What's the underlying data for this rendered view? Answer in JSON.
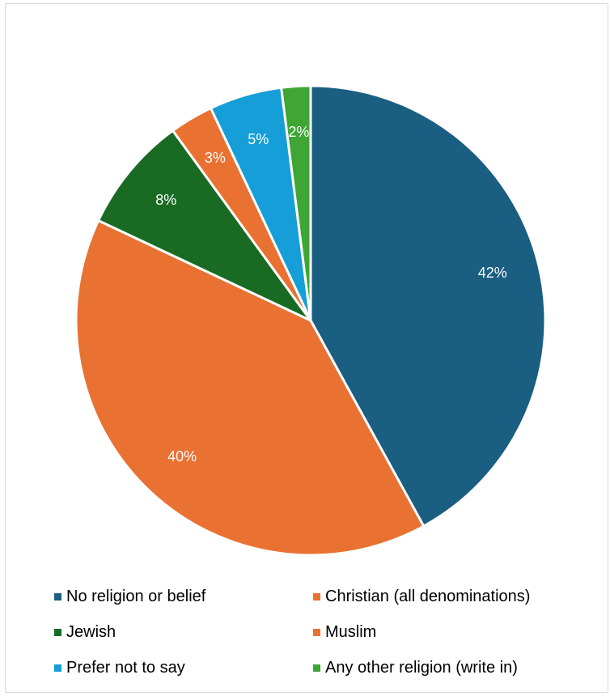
{
  "chart_data": {
    "type": "pie",
    "title": "",
    "slices": [
      {
        "label": "No religion or belief",
        "value": 42,
        "display": "42%",
        "color": "#1a5e82"
      },
      {
        "label": "Christian (all denominations)",
        "value": 40,
        "display": "40%",
        "color": "#e97132"
      },
      {
        "label": "Jewish",
        "value": 8,
        "display": "8%",
        "color": "#196b24"
      },
      {
        "label": "Muslim",
        "value": 3,
        "display": "3%",
        "color": "#e97132"
      },
      {
        "label": "Prefer not to say",
        "value": 5,
        "display": "5%",
        "color": "#159ed8"
      },
      {
        "label": "Any other religion (write in)",
        "value": 2,
        "display": "2%",
        "color": "#3fa535"
      }
    ],
    "legend_position": "bottom"
  },
  "legend": {
    "items": [
      {
        "label": "No religion or belief",
        "color": "#1a5e82"
      },
      {
        "label": "Christian (all denominations)",
        "color": "#e97132"
      },
      {
        "label": "Jewish",
        "color": "#196b24"
      },
      {
        "label": "Muslim",
        "color": "#e97132"
      },
      {
        "label": "Prefer not to say",
        "color": "#159ed8"
      },
      {
        "label": "Any other religion (write in)",
        "color": "#3fa535"
      }
    ]
  }
}
